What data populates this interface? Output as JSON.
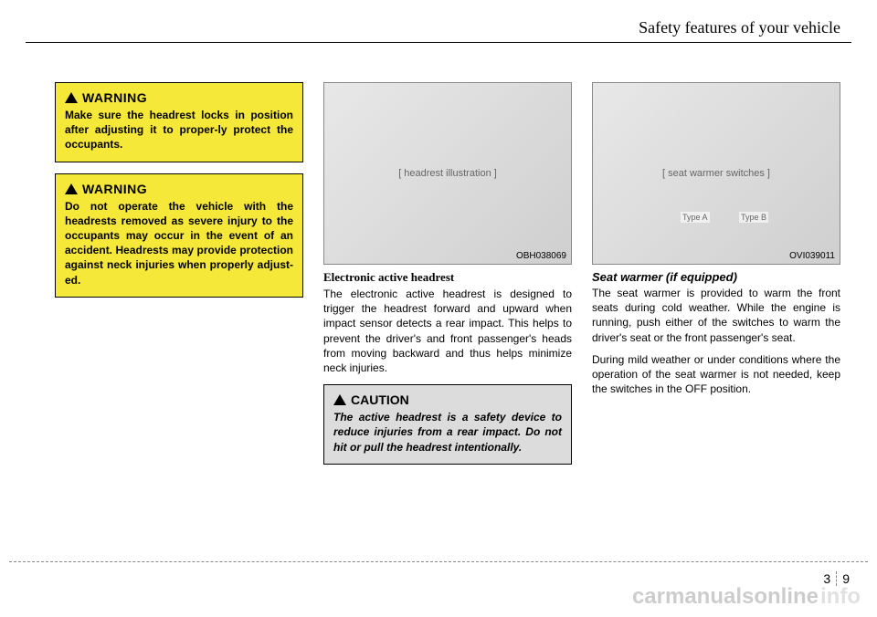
{
  "header": {
    "title": "Safety features of your vehicle"
  },
  "col1": {
    "warning1": {
      "label": "WARNING",
      "body": "Make sure the headrest locks in position after adjusting it to proper-ly protect the occupants."
    },
    "warning2": {
      "label": "WARNING",
      "body": "Do not operate the vehicle with the headrests removed as severe injury to the occupants may occur in the event of an accident. Headrests may provide protection against neck injuries when properly adjust-ed."
    }
  },
  "col2": {
    "image_code": "OBH038069",
    "image_alt": "[ headrest illustration ]",
    "section_title": "Electronic active headrest",
    "para": "The electronic active headrest is designed to trigger the headrest forward and upward when impact sensor detects a rear impact. This helps to prevent the driver's and front passenger's heads from moving backward and thus helps minimize neck injuries.",
    "caution": {
      "label": "CAUTION",
      "body": "The active headrest is a safety device to reduce injuries from a rear impact. Do not hit or pull the headrest intentionally."
    }
  },
  "col3": {
    "image_code": "OVI039011",
    "image_alt": "[ seat warmer switches ]",
    "tag_a": "Type A",
    "tag_b": "Type B",
    "section_title": "Seat warmer (if equipped)",
    "para1": "The seat warmer is provided to warm the front seats during cold weather. While the engine is running, push either of the switches to warm the driver's seat or the front passenger's seat.",
    "para2": "During mild weather or under conditions where the operation of the seat warmer is not needed, keep the switches in the OFF position."
  },
  "footer": {
    "chapter": "3",
    "page": "9",
    "watermark1": "carmanualsonline",
    "watermark2": "info"
  },
  "colors": {
    "warning_bg": "#f5e838",
    "caution_bg": "#dcdcdc",
    "text": "#000000",
    "watermark": "rgba(0,0,0,0.20)"
  }
}
